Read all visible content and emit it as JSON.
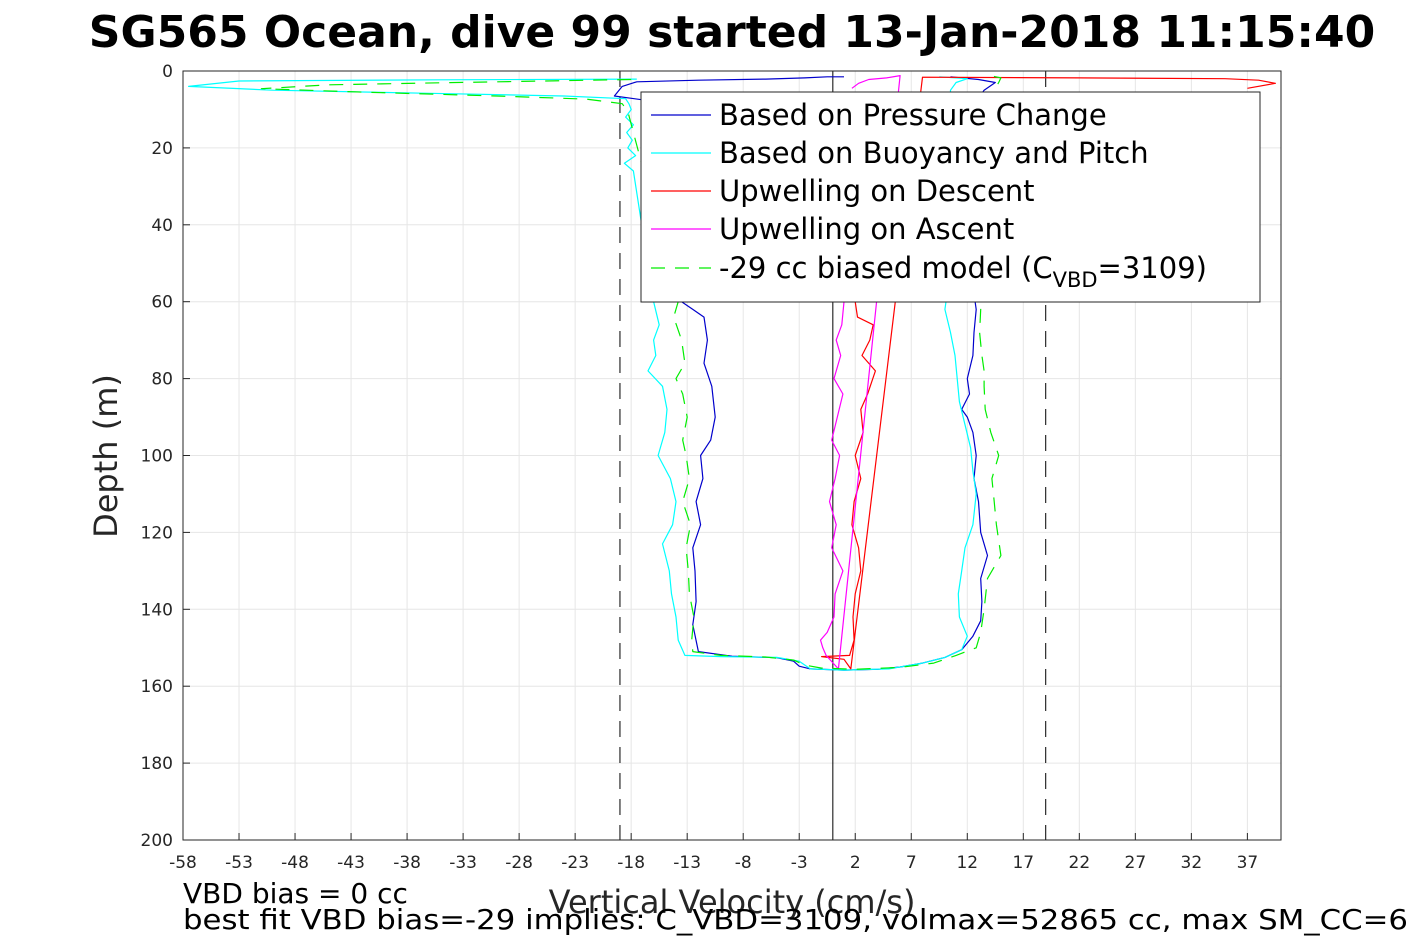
{
  "chart_data": {
    "type": "line",
    "title": "SG565 Ocean, dive 99 started 13-Jan-2018 11:15:40",
    "xlabel": "Vertical Velocity (cm/s)",
    "ylabel": "Depth (m)",
    "xlim": [
      -58,
      40
    ],
    "ylim": [
      0,
      200
    ],
    "y_reversed": true,
    "x_ticks": [
      -58,
      -53,
      -48,
      -43,
      -38,
      -33,
      -28,
      -23,
      -18,
      -13,
      -8,
      -3,
      2,
      7,
      12,
      17,
      22,
      27,
      32,
      37
    ],
    "y_ticks": [
      0,
      20,
      40,
      60,
      80,
      100,
      120,
      140,
      160,
      180,
      200
    ],
    "grid": true,
    "legend_position": "top-right",
    "colors": {
      "pressure": "#0000cc",
      "buoyancy": "#00ffff",
      "upwell_desc": "#ff0000",
      "upwell_asc": "#ff00ff",
      "model": "#00ee00"
    },
    "legend": {
      "pressure": "Based on Pressure Change",
      "buoyancy": "Based on Buoyancy and Pitch",
      "upwell_desc": "Upwelling on Descent",
      "upwell_asc": "Upwelling on Ascent",
      "model_prefix": "-29 cc biased model (C",
      "model_sub": "VBD",
      "model_suffix": "=3109)"
    },
    "reference_lines": {
      "zero": 0,
      "dashed_left": -19,
      "dashed_right": 19
    },
    "series": [
      {
        "key": "pressure",
        "style": "solid",
        "points": [
          [
            1,
            1.5
          ],
          [
            -0.5,
            1.5
          ],
          [
            -2.5,
            1.8
          ],
          [
            -6,
            2.1
          ],
          [
            -12,
            2.4
          ],
          [
            -17.5,
            2.8
          ],
          [
            -18.8,
            4
          ],
          [
            -19.5,
            6.5
          ],
          [
            -17,
            7.5
          ],
          [
            -15.5,
            8
          ],
          [
            -14.5,
            9
          ],
          [
            -14,
            10.5
          ],
          [
            -13.5,
            60
          ],
          [
            -12.5,
            62
          ],
          [
            -11.5,
            64
          ],
          [
            -11.2,
            70
          ],
          [
            -11.5,
            76
          ],
          [
            -10.8,
            82
          ],
          [
            -10.5,
            90
          ],
          [
            -10.9,
            96
          ],
          [
            -11.8,
            100
          ],
          [
            -11.6,
            106
          ],
          [
            -12.2,
            112
          ],
          [
            -11.8,
            118
          ],
          [
            -12.5,
            124
          ],
          [
            -12.3,
            130
          ],
          [
            -12.2,
            138
          ],
          [
            -12.5,
            144
          ],
          [
            -12,
            151
          ],
          [
            -9,
            152.2
          ],
          [
            -5,
            152.6
          ],
          [
            -3.5,
            153.5
          ],
          [
            -3,
            154.8
          ],
          [
            -2,
            155.5
          ],
          [
            1,
            155.8
          ],
          [
            4,
            155.6
          ],
          [
            6,
            155
          ],
          [
            8,
            154
          ],
          [
            10,
            152.5
          ],
          [
            11.5,
            150.5
          ],
          [
            12.5,
            147
          ],
          [
            13.2,
            143
          ],
          [
            13.3,
            138
          ],
          [
            13.2,
            132
          ],
          [
            13.8,
            126
          ],
          [
            13.2,
            120
          ],
          [
            13,
            112
          ],
          [
            12.6,
            106
          ],
          [
            12.8,
            100
          ],
          [
            12.5,
            94
          ],
          [
            12,
            90
          ],
          [
            11.5,
            88
          ],
          [
            12.2,
            84
          ],
          [
            12,
            80
          ],
          [
            12.5,
            74
          ],
          [
            12.6,
            68
          ],
          [
            12.8,
            62
          ],
          [
            12.7,
            60
          ],
          [
            12.5,
            14
          ],
          [
            12.8,
            8
          ],
          [
            13.5,
            5
          ],
          [
            14.5,
            3
          ],
          [
            13,
            2.2
          ],
          [
            10.5,
            1.5
          ]
        ]
      },
      {
        "key": "buoyancy",
        "style": "solid",
        "points": [
          [
            -17.5,
            2.1
          ],
          [
            -35,
            2.3
          ],
          [
            -53,
            2.6
          ],
          [
            -57.5,
            4
          ],
          [
            -50,
            5
          ],
          [
            -36,
            5.8
          ],
          [
            -24,
            6.5
          ],
          [
            -18.5,
            7.2
          ],
          [
            -18.2,
            8.5
          ],
          [
            -18,
            10
          ],
          [
            -18.5,
            12
          ],
          [
            -17.8,
            14
          ],
          [
            -18.4,
            16
          ],
          [
            -17.9,
            18
          ],
          [
            -18.3,
            20
          ],
          [
            -17.6,
            22
          ],
          [
            -18.6,
            24
          ],
          [
            -17.8,
            26
          ],
          [
            -16,
            60
          ],
          [
            -15.5,
            66
          ],
          [
            -16,
            70
          ],
          [
            -15.8,
            74
          ],
          [
            -16.5,
            78
          ],
          [
            -15.2,
            82
          ],
          [
            -14.8,
            88
          ],
          [
            -15,
            94
          ],
          [
            -15.6,
            100
          ],
          [
            -14.5,
            106
          ],
          [
            -14,
            112
          ],
          [
            -14.3,
            118
          ],
          [
            -15.2,
            123
          ],
          [
            -14.6,
            130
          ],
          [
            -14.4,
            136
          ],
          [
            -14,
            142
          ],
          [
            -13.8,
            148
          ],
          [
            -13.2,
            152
          ],
          [
            -10,
            152.3
          ],
          [
            -5,
            152.5
          ],
          [
            -3,
            153.5
          ],
          [
            -2,
            155.5
          ],
          [
            1,
            155.8
          ],
          [
            5,
            155.5
          ],
          [
            8,
            154
          ],
          [
            10,
            152.5
          ],
          [
            11.5,
            150.5
          ],
          [
            12,
            147
          ],
          [
            11.3,
            142
          ],
          [
            11.2,
            136
          ],
          [
            11.5,
            130
          ],
          [
            11.8,
            124
          ],
          [
            12.5,
            118
          ],
          [
            12.8,
            110
          ],
          [
            12.5,
            104
          ],
          [
            12.3,
            98
          ],
          [
            11.8,
            92
          ],
          [
            11.3,
            86
          ],
          [
            11.1,
            80
          ],
          [
            10.9,
            74
          ],
          [
            10.5,
            68
          ],
          [
            10,
            62
          ],
          [
            10.1,
            60
          ],
          [
            10.5,
            5
          ],
          [
            11,
            3
          ],
          [
            12,
            2
          ],
          [
            9.5,
            1.5
          ]
        ]
      },
      {
        "key": "upwell_desc",
        "style": "solid",
        "points": [
          [
            2,
            60
          ],
          [
            2.2,
            64
          ],
          [
            3.6,
            66
          ],
          [
            3.3,
            70
          ],
          [
            2.6,
            74
          ],
          [
            3.8,
            78
          ],
          [
            3.1,
            84
          ],
          [
            2.5,
            88
          ],
          [
            2.7,
            94
          ],
          [
            2,
            100
          ],
          [
            2.5,
            106
          ],
          [
            1.9,
            112
          ],
          [
            1.7,
            118
          ],
          [
            2.3,
            124
          ],
          [
            2.5,
            130
          ],
          [
            2,
            136
          ],
          [
            1.8,
            142
          ],
          [
            1.9,
            148
          ],
          [
            1.5,
            152
          ],
          [
            -1,
            152.3
          ],
          [
            1,
            153
          ],
          [
            1.6,
            155.5
          ],
          [
            8,
            1.6
          ],
          [
            22,
            1.8
          ],
          [
            35,
            2
          ],
          [
            38,
            2.4
          ],
          [
            39.5,
            3.2
          ],
          [
            37,
            4.5
          ]
        ]
      },
      {
        "key": "upwell_asc",
        "style": "solid",
        "points": [
          [
            1,
            60
          ],
          [
            0.8,
            66
          ],
          [
            0.3,
            70
          ],
          [
            0.7,
            74
          ],
          [
            0.1,
            80
          ],
          [
            0.9,
            84
          ],
          [
            0.4,
            90
          ],
          [
            -0.1,
            96
          ],
          [
            0.6,
            100
          ],
          [
            0.2,
            106
          ],
          [
            -0.3,
            112
          ],
          [
            0.3,
            118
          ],
          [
            -0.1,
            124
          ],
          [
            0.9,
            130
          ],
          [
            0.2,
            136
          ],
          [
            0.1,
            142
          ],
          [
            -0.5,
            146
          ],
          [
            -1.1,
            148
          ],
          [
            -0.9,
            150
          ],
          [
            -0.6,
            152
          ],
          [
            0.5,
            155.5
          ],
          [
            6,
            1.2
          ],
          [
            4.8,
            1.8
          ],
          [
            3.2,
            2.2
          ],
          [
            2.3,
            3.2
          ],
          [
            1.7,
            4.5
          ]
        ]
      },
      {
        "key": "model",
        "style": "dashed",
        "points": [
          [
            -18,
            2.2
          ],
          [
            -30,
            2.8
          ],
          [
            -45,
            3.6
          ],
          [
            -51,
            4.6
          ],
          [
            -42,
            5.5
          ],
          [
            -30,
            6.5
          ],
          [
            -22,
            7.3
          ],
          [
            -18.8,
            8.5
          ],
          [
            -18.3,
            10.5
          ],
          [
            -13.8,
            60
          ],
          [
            -14.2,
            64
          ],
          [
            -13.5,
            70
          ],
          [
            -13.2,
            76
          ],
          [
            -14,
            80
          ],
          [
            -13.4,
            84
          ],
          [
            -13,
            90
          ],
          [
            -13.4,
            96
          ],
          [
            -13.1,
            100
          ],
          [
            -12.8,
            106
          ],
          [
            -13.4,
            112
          ],
          [
            -12.7,
            118
          ],
          [
            -13.1,
            124
          ],
          [
            -12.9,
            130
          ],
          [
            -12.8,
            136
          ],
          [
            -12.4,
            142
          ],
          [
            -12.6,
            148
          ],
          [
            -12.5,
            151
          ],
          [
            -10,
            152
          ],
          [
            -6,
            152.4
          ],
          [
            -3.5,
            153.2
          ],
          [
            -2.5,
            154.5
          ],
          [
            -1,
            155.3
          ],
          [
            2,
            155.6
          ],
          [
            6,
            155.1
          ],
          [
            9,
            154
          ],
          [
            11,
            152
          ],
          [
            12.8,
            150
          ],
          [
            13.2,
            146
          ],
          [
            13.5,
            140
          ],
          [
            13.8,
            132
          ],
          [
            15,
            126
          ],
          [
            14.6,
            118
          ],
          [
            14.4,
            112
          ],
          [
            14.2,
            106
          ],
          [
            14.8,
            100
          ],
          [
            14.1,
            94
          ],
          [
            13.6,
            88
          ],
          [
            13.5,
            82
          ],
          [
            13.5,
            78
          ],
          [
            13.3,
            74
          ],
          [
            13.1,
            68
          ],
          [
            13.2,
            62
          ],
          [
            13.2,
            60
          ],
          [
            14.5,
            4.5
          ],
          [
            14.8,
            3
          ],
          [
            15,
            1.8
          ],
          [
            14,
            1.2
          ]
        ]
      }
    ]
  },
  "footer": {
    "line1": "VBD bias = 0 cc",
    "line2": "best fit VBD bias=-29 implies: C_VBD=3109, volmax=52865 cc, max SM_CC=6"
  }
}
